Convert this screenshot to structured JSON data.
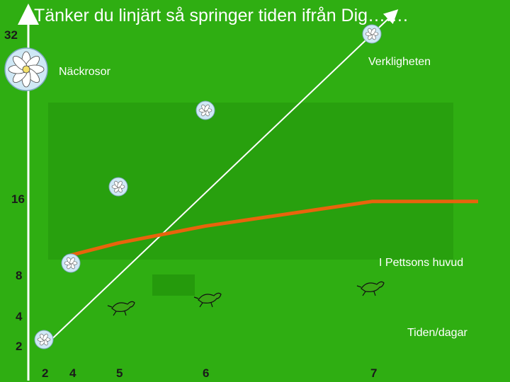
{
  "title": "Tänker du linjärt så springer tiden ifrån Dig…….",
  "chart_data": {
    "type": "line",
    "x_ticks": [
      2,
      4,
      5,
      6,
      7
    ],
    "y_ticks": [
      2,
      4,
      8,
      16,
      32
    ],
    "xlabel": "Tiden/dagar",
    "series": [
      {
        "name": "Verkligheten",
        "color": "#ffffff",
        "x": [
          2,
          4,
          5,
          6,
          7
        ],
        "y": [
          2,
          4,
          8,
          16,
          32
        ]
      },
      {
        "name": "I Pettsons huvud",
        "color": "#e8640c",
        "x": [
          2,
          4,
          5,
          6,
          7
        ],
        "y": [
          4,
          4.3,
          4.8,
          5.6,
          7
        ]
      }
    ],
    "annotations": [
      "Näckrosor"
    ],
    "grid": false
  },
  "icons": {
    "lily": "water-lily-icon",
    "pad": "lily-pad-icon",
    "frog": "frog-icon"
  }
}
